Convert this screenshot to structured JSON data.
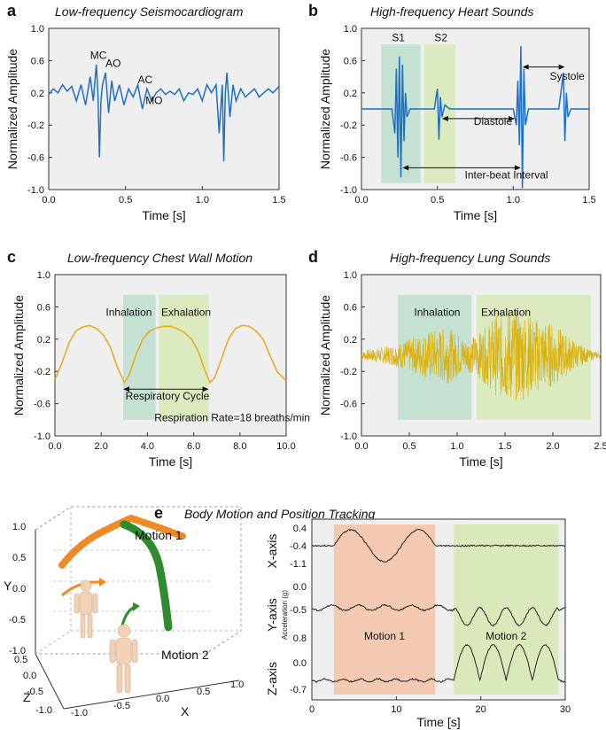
{
  "figure": {
    "panels": [
      {
        "letter": "a",
        "title": "Low-frequency Seismocardiogram"
      },
      {
        "letter": "b",
        "title": "High-frequency Heart Sounds"
      },
      {
        "letter": "c",
        "title": "Low-frequency Chest Wall Motion"
      },
      {
        "letter": "d",
        "title": "High-frequency Lung Sounds"
      },
      {
        "letter": "e",
        "title": "Body Motion and Position Tracking"
      }
    ]
  },
  "chart_data": [
    {
      "id": "a",
      "type": "line",
      "title": "Low-frequency Seismocardiogram",
      "xlabel": "Time [s]",
      "ylabel": "Normalized Amplitude",
      "xlim": [
        0,
        1.5
      ],
      "ylim": [
        -1.0,
        1.0
      ],
      "xticks": [
        "0.0",
        "0.5",
        "1.0",
        "1.5"
      ],
      "yticks": [
        "-1.0",
        "-0.6",
        "-0.2",
        "0.2",
        "0.6",
        "1.0"
      ],
      "line_color": "#1f6fc4",
      "series": [
        {
          "x": [
            0,
            0.03,
            0.06,
            0.09,
            0.12,
            0.15,
            0.18,
            0.21,
            0.24,
            0.27,
            0.29,
            0.31,
            0.32,
            0.33,
            0.34,
            0.35,
            0.37,
            0.39,
            0.41,
            0.43,
            0.46,
            0.49,
            0.52,
            0.55,
            0.58,
            0.61,
            0.64,
            0.67,
            0.7,
            0.73,
            0.76,
            0.79,
            0.82,
            0.85,
            0.88,
            0.91,
            0.94,
            0.97,
            1.0,
            1.03,
            1.06,
            1.09,
            1.11,
            1.13,
            1.14,
            1.15,
            1.16,
            1.18,
            1.2,
            1.22,
            1.25,
            1.28,
            1.31,
            1.34,
            1.37,
            1.4,
            1.43,
            1.46,
            1.5
          ],
          "y": [
            0.18,
            0.25,
            0.2,
            0.3,
            0.22,
            0.28,
            0.1,
            0.3,
            0.05,
            0.4,
            0.1,
            0.55,
            0.2,
            -0.6,
            0.1,
            0.3,
            0.45,
            -0.05,
            0.35,
            0.1,
            0.3,
            0.05,
            0.25,
            0.15,
            0.3,
            0.0,
            0.25,
            0.1,
            0.2,
            0.25,
            0.18,
            0.22,
            0.18,
            0.25,
            0.1,
            0.2,
            0.18,
            0.25,
            0.1,
            0.3,
            0.2,
            0.3,
            -0.3,
            0.3,
            -0.65,
            0.2,
            0.45,
            -0.1,
            0.3,
            0.1,
            0.25,
            0.15,
            0.2,
            0.25,
            0.15,
            0.2,
            0.25,
            0.2,
            0.28
          ]
        }
      ],
      "annotations": [
        {
          "text": "MC",
          "x": 0.27,
          "y": 0.62
        },
        {
          "text": "AO",
          "x": 0.37,
          "y": 0.52
        },
        {
          "text": "AC",
          "x": 0.58,
          "y": 0.32
        },
        {
          "text": "MO",
          "x": 0.63,
          "y": 0.06
        }
      ]
    },
    {
      "id": "b",
      "type": "line",
      "title": "High-frequency Heart Sounds",
      "xlabel": "Time [s]",
      "ylabel": "Normalized Amplitude",
      "xlim": [
        0,
        1.5
      ],
      "ylim": [
        -1.0,
        1.0
      ],
      "xticks": [
        "0.0",
        "0.5",
        "1.0",
        "1.5"
      ],
      "yticks": [
        "-1.0",
        "-0.6",
        "-0.2",
        "0.2",
        "0.6",
        "1.0"
      ],
      "line_color": "#1f6fc4",
      "shaded_regions": [
        {
          "label": "S1",
          "x0": 0.13,
          "x1": 0.39,
          "color": "#b5dcc8"
        },
        {
          "label": "S2",
          "x0": 0.41,
          "x1": 0.62,
          "color": "#d6e8b0"
        }
      ],
      "series": [
        {
          "x": [
            0,
            0.2,
            0.22,
            0.23,
            0.24,
            0.25,
            0.26,
            0.27,
            0.28,
            0.29,
            0.3,
            0.32,
            0.48,
            0.5,
            0.51,
            0.52,
            0.53,
            0.55,
            0.58,
            1.0,
            1.02,
            1.03,
            1.04,
            1.05,
            1.06,
            1.07,
            1.08,
            1.1,
            1.3,
            1.33,
            1.34,
            1.35,
            1.36,
            1.38,
            1.5
          ],
          "y": [
            0,
            0,
            -0.3,
            0.5,
            -0.6,
            0.65,
            -0.85,
            0.55,
            -0.4,
            0.2,
            -0.1,
            0,
            0,
            0.25,
            -0.38,
            0.15,
            -0.1,
            0.05,
            0,
            0,
            -0.2,
            0.35,
            -0.45,
            0.78,
            -0.98,
            0.5,
            -0.2,
            0,
            0,
            0.45,
            -0.4,
            0.2,
            -0.1,
            0,
            0
          ]
        }
      ],
      "annotations": [
        {
          "text": "S1",
          "x": 0.2,
          "y": 0.84
        },
        {
          "text": "S2",
          "x": 0.48,
          "y": 0.84
        },
        {
          "text": "Systole",
          "x": 1.24,
          "y": 0.36
        },
        {
          "text": "Diastole",
          "x": 0.74,
          "y": -0.2
        },
        {
          "text": "Inter-beat Interval",
          "x": 0.68,
          "y": -0.86
        }
      ],
      "arrows": [
        {
          "x0": 1.06,
          "x1": 1.34,
          "y": 0.52
        },
        {
          "x0": 0.53,
          "x1": 1.01,
          "y": -0.12
        },
        {
          "x0": 0.27,
          "x1": 1.05,
          "y": -0.73
        }
      ]
    },
    {
      "id": "c",
      "type": "line",
      "title": "Low-frequency Chest Wall Motion",
      "xlabel": "Time [s]",
      "ylabel": "Normalized Amplitude",
      "xlim": [
        0,
        10.0
      ],
      "ylim": [
        -1.0,
        1.0
      ],
      "xticks": [
        "0.0",
        "2.0",
        "4.0",
        "6.0",
        "8.0",
        "10.0"
      ],
      "yticks": [
        "-1.0",
        "-0.6",
        "-0.2",
        "0.2",
        "0.6",
        "1.0"
      ],
      "line_color": "#e8a81c",
      "shaded_regions": [
        {
          "label": "Inhalation",
          "x0": 2.95,
          "x1": 4.35,
          "color": "#b5dcc8"
        },
        {
          "label": "Exhalation",
          "x0": 4.5,
          "x1": 6.65,
          "color": "#d6e8b0"
        }
      ],
      "series": [
        {
          "x": [
            0,
            0.3,
            0.6,
            0.9,
            1.2,
            1.5,
            1.8,
            2.1,
            2.4,
            2.7,
            3.0,
            3.2,
            3.5,
            3.8,
            4.1,
            4.4,
            4.7,
            5.0,
            5.3,
            5.6,
            5.9,
            6.2,
            6.5,
            6.7,
            6.9,
            7.2,
            7.5,
            7.8,
            8.1,
            8.4,
            8.7,
            9.0,
            9.3,
            9.6,
            10.0
          ],
          "y": [
            -0.3,
            -0.1,
            0.15,
            0.3,
            0.35,
            0.37,
            0.33,
            0.25,
            0.1,
            -0.15,
            -0.34,
            -0.25,
            0.0,
            0.2,
            0.3,
            0.34,
            0.36,
            0.36,
            0.33,
            0.28,
            0.2,
            0.05,
            -0.2,
            -0.34,
            -0.28,
            -0.05,
            0.2,
            0.33,
            0.37,
            0.36,
            0.3,
            0.2,
            0.0,
            -0.2,
            -0.32
          ]
        }
      ],
      "annotations": [
        {
          "text": "Inhalation",
          "x": 2.2,
          "y": 0.49
        },
        {
          "text": "Exhalation",
          "x": 4.6,
          "y": 0.49
        },
        {
          "text": "Respiratory Cycle",
          "x": 3.05,
          "y": -0.55
        },
        {
          "text": "Respiration Rate=18 breaths/min",
          "x": 4.3,
          "y": -0.82
        }
      ],
      "arrows": [
        {
          "x0": 2.95,
          "x1": 6.65,
          "y": -0.42
        }
      ]
    },
    {
      "id": "d",
      "type": "line",
      "title": "High-frequency Lung Sounds",
      "xlabel": "Time [s]",
      "ylabel": "Normalized Amplitude",
      "xlim": [
        0,
        2.5
      ],
      "ylim": [
        -1.0,
        1.0
      ],
      "xticks": [
        "0.0",
        "0.5",
        "1.0",
        "1.5",
        "2.0",
        "2.5"
      ],
      "yticks": [
        "-1.0",
        "-0.6",
        "-0.2",
        "0.2",
        "0.6",
        "1.0"
      ],
      "line_color": "#d9b316",
      "shaded_regions": [
        {
          "label": "Inhalation",
          "x0": 0.38,
          "x1": 1.15,
          "color": "#b5dcc8"
        },
        {
          "label": "Exhalation",
          "x0": 1.2,
          "x1": 2.4,
          "color": "#d6e8b0"
        }
      ],
      "envelope": {
        "x": [
          0,
          0.1,
          0.3,
          0.5,
          0.7,
          0.9,
          1.1,
          1.25,
          1.4,
          1.55,
          1.7,
          1.85,
          2.0,
          2.15,
          2.3,
          2.4,
          2.5
        ],
        "amp": [
          0.05,
          0.08,
          0.12,
          0.2,
          0.3,
          0.35,
          0.2,
          0.3,
          0.5,
          0.6,
          0.55,
          0.45,
          0.4,
          0.25,
          0.12,
          0.06,
          0.03
        ]
      },
      "annotations": [
        {
          "text": "Inhalation",
          "x": 0.55,
          "y": 0.49
        },
        {
          "text": "Exhalation",
          "x": 1.25,
          "y": 0.49
        }
      ]
    },
    {
      "id": "e-3d",
      "type": "scatter",
      "title": "Body Motion and Position Tracking",
      "xlabel": "X",
      "ylabel": "Y",
      "zlabel": "Z",
      "y_ticks": [
        "-1.0",
        "-0.5",
        "0.0",
        "0.5",
        "1.0"
      ],
      "z_ticks": [
        "1.0",
        "0.5",
        "0.0",
        "-0.5",
        "-1.0"
      ],
      "x_ticks": [
        "-1.0",
        "-0.5",
        "0.0",
        "0.5",
        "1.0"
      ],
      "series": [
        {
          "name": "Motion 1",
          "color": "#f08a24"
        },
        {
          "name": "Motion 2",
          "color": "#2e8b2e"
        }
      ]
    },
    {
      "id": "e-accel",
      "type": "line",
      "xlabel": "Time [s]",
      "ylabel": "Acceleration (g)",
      "xlim": [
        0,
        30
      ],
      "xticks": [
        "0",
        "10",
        "20",
        "30"
      ],
      "line_color": "#222222",
      "shaded_regions": [
        {
          "label": "Motion 1",
          "x0": 2.6,
          "x1": 14.6,
          "color": "#f3c3a6"
        },
        {
          "label": "Motion 2",
          "x0": 16.8,
          "x1": 29.2,
          "color": "#d6e8b0"
        }
      ],
      "series": [
        {
          "name": "X-axis",
          "ticks": [
            "0.4",
            "-0.4",
            "-1.1"
          ]
        },
        {
          "name": "Y-axis",
          "ticks": [
            "0.0",
            "-0.5"
          ]
        },
        {
          "name": "Z-axis",
          "ticks": [
            "0.8",
            "0.0",
            "-0.7"
          ]
        }
      ]
    }
  ]
}
